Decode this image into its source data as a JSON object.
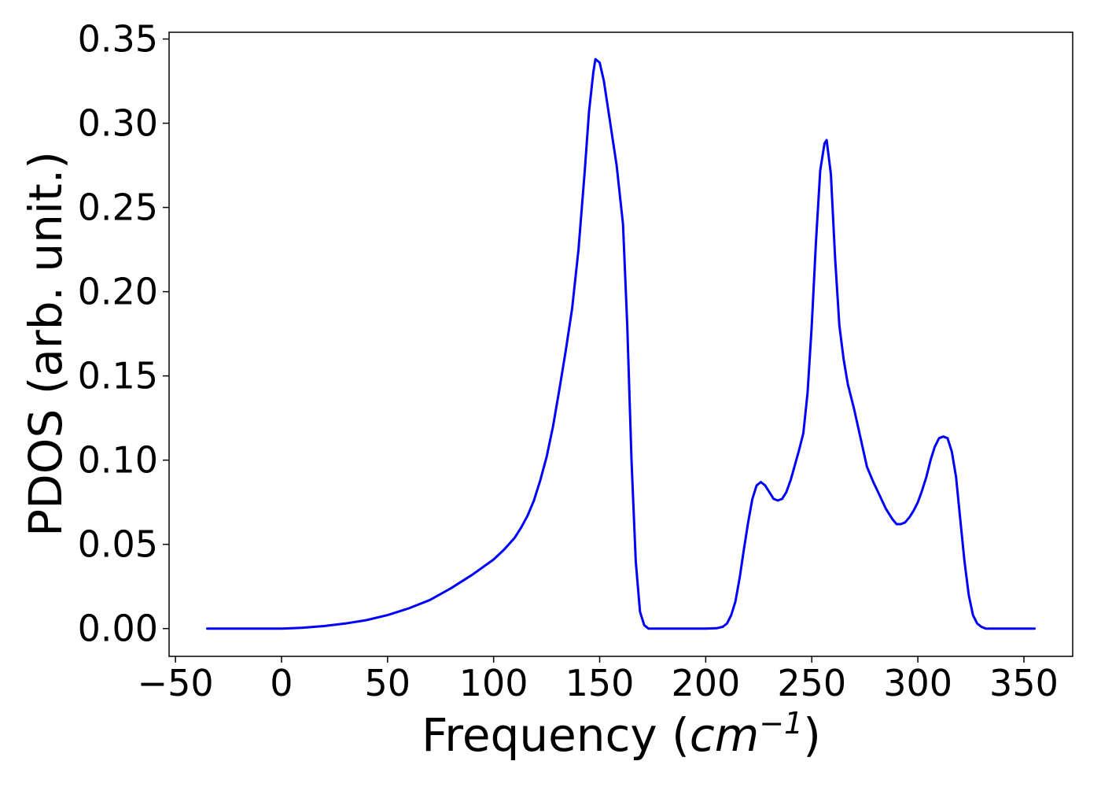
{
  "chart_data": {
    "type": "line",
    "title": "",
    "xlabel_main": "Frequency (",
    "xlabel_unit": "cm",
    "xlabel_exp": "−1",
    "xlabel_close": ")",
    "ylabel": "PDOS (arb. unit.)",
    "xlim": [
      -53,
      373
    ],
    "ylim": [
      -0.0165,
      0.354
    ],
    "xticks": [
      -50,
      0,
      50,
      100,
      150,
      200,
      250,
      300,
      350
    ],
    "xtick_labels": [
      "−50",
      "0",
      "50",
      "100",
      "150",
      "200",
      "250",
      "300",
      "350"
    ],
    "yticks": [
      0.0,
      0.05,
      0.1,
      0.15,
      0.2,
      0.25,
      0.3,
      0.35
    ],
    "ytick_labels": [
      "0.00",
      "0.05",
      "0.10",
      "0.15",
      "0.20",
      "0.25",
      "0.30",
      "0.35"
    ],
    "grid": false,
    "series": [
      {
        "color": "#0000ff",
        "x": [
          -35,
          -20,
          0,
          5,
          10,
          20,
          30,
          40,
          50,
          60,
          70,
          80,
          90,
          100,
          105,
          110,
          113,
          116,
          119,
          122,
          125,
          128,
          131,
          134,
          137,
          140,
          143,
          145,
          147,
          148,
          150,
          152,
          155,
          158,
          161,
          163,
          165,
          167,
          169,
          171,
          173,
          175,
          180,
          190,
          200,
          205,
          208,
          210,
          212,
          214,
          216,
          218,
          220,
          222,
          224,
          226,
          228,
          230,
          232,
          234,
          236,
          238,
          240,
          242,
          244,
          246,
          248,
          250,
          252,
          254,
          256,
          257,
          259,
          261,
          263,
          265,
          267,
          270,
          273,
          276,
          279,
          282,
          285,
          288,
          290,
          292,
          294,
          296,
          298,
          300,
          302,
          304,
          306,
          308,
          310,
          312,
          314,
          316,
          318,
          320,
          322,
          324,
          326,
          328,
          330,
          332,
          335,
          345,
          355
        ],
        "y": [
          0.0,
          0.0,
          0.0,
          0.0002,
          0.0005,
          0.0015,
          0.003,
          0.005,
          0.008,
          0.012,
          0.017,
          0.024,
          0.032,
          0.041,
          0.047,
          0.054,
          0.06,
          0.067,
          0.076,
          0.088,
          0.102,
          0.12,
          0.142,
          0.165,
          0.19,
          0.225,
          0.272,
          0.307,
          0.33,
          0.338,
          0.336,
          0.325,
          0.3,
          0.275,
          0.24,
          0.18,
          0.1,
          0.04,
          0.01,
          0.002,
          0.0,
          0.0,
          0.0,
          0.0,
          0.0,
          0.0002,
          0.001,
          0.003,
          0.008,
          0.016,
          0.03,
          0.047,
          0.063,
          0.077,
          0.085,
          0.087,
          0.085,
          0.081,
          0.077,
          0.076,
          0.077,
          0.081,
          0.088,
          0.097,
          0.106,
          0.116,
          0.14,
          0.18,
          0.23,
          0.272,
          0.288,
          0.29,
          0.27,
          0.22,
          0.18,
          0.16,
          0.145,
          0.13,
          0.113,
          0.096,
          0.087,
          0.079,
          0.071,
          0.065,
          0.062,
          0.062,
          0.063,
          0.066,
          0.07,
          0.075,
          0.082,
          0.09,
          0.1,
          0.108,
          0.113,
          0.114,
          0.113,
          0.105,
          0.09,
          0.065,
          0.04,
          0.02,
          0.008,
          0.003,
          0.001,
          0.0,
          0.0,
          0.0,
          0.0
        ]
      }
    ]
  }
}
